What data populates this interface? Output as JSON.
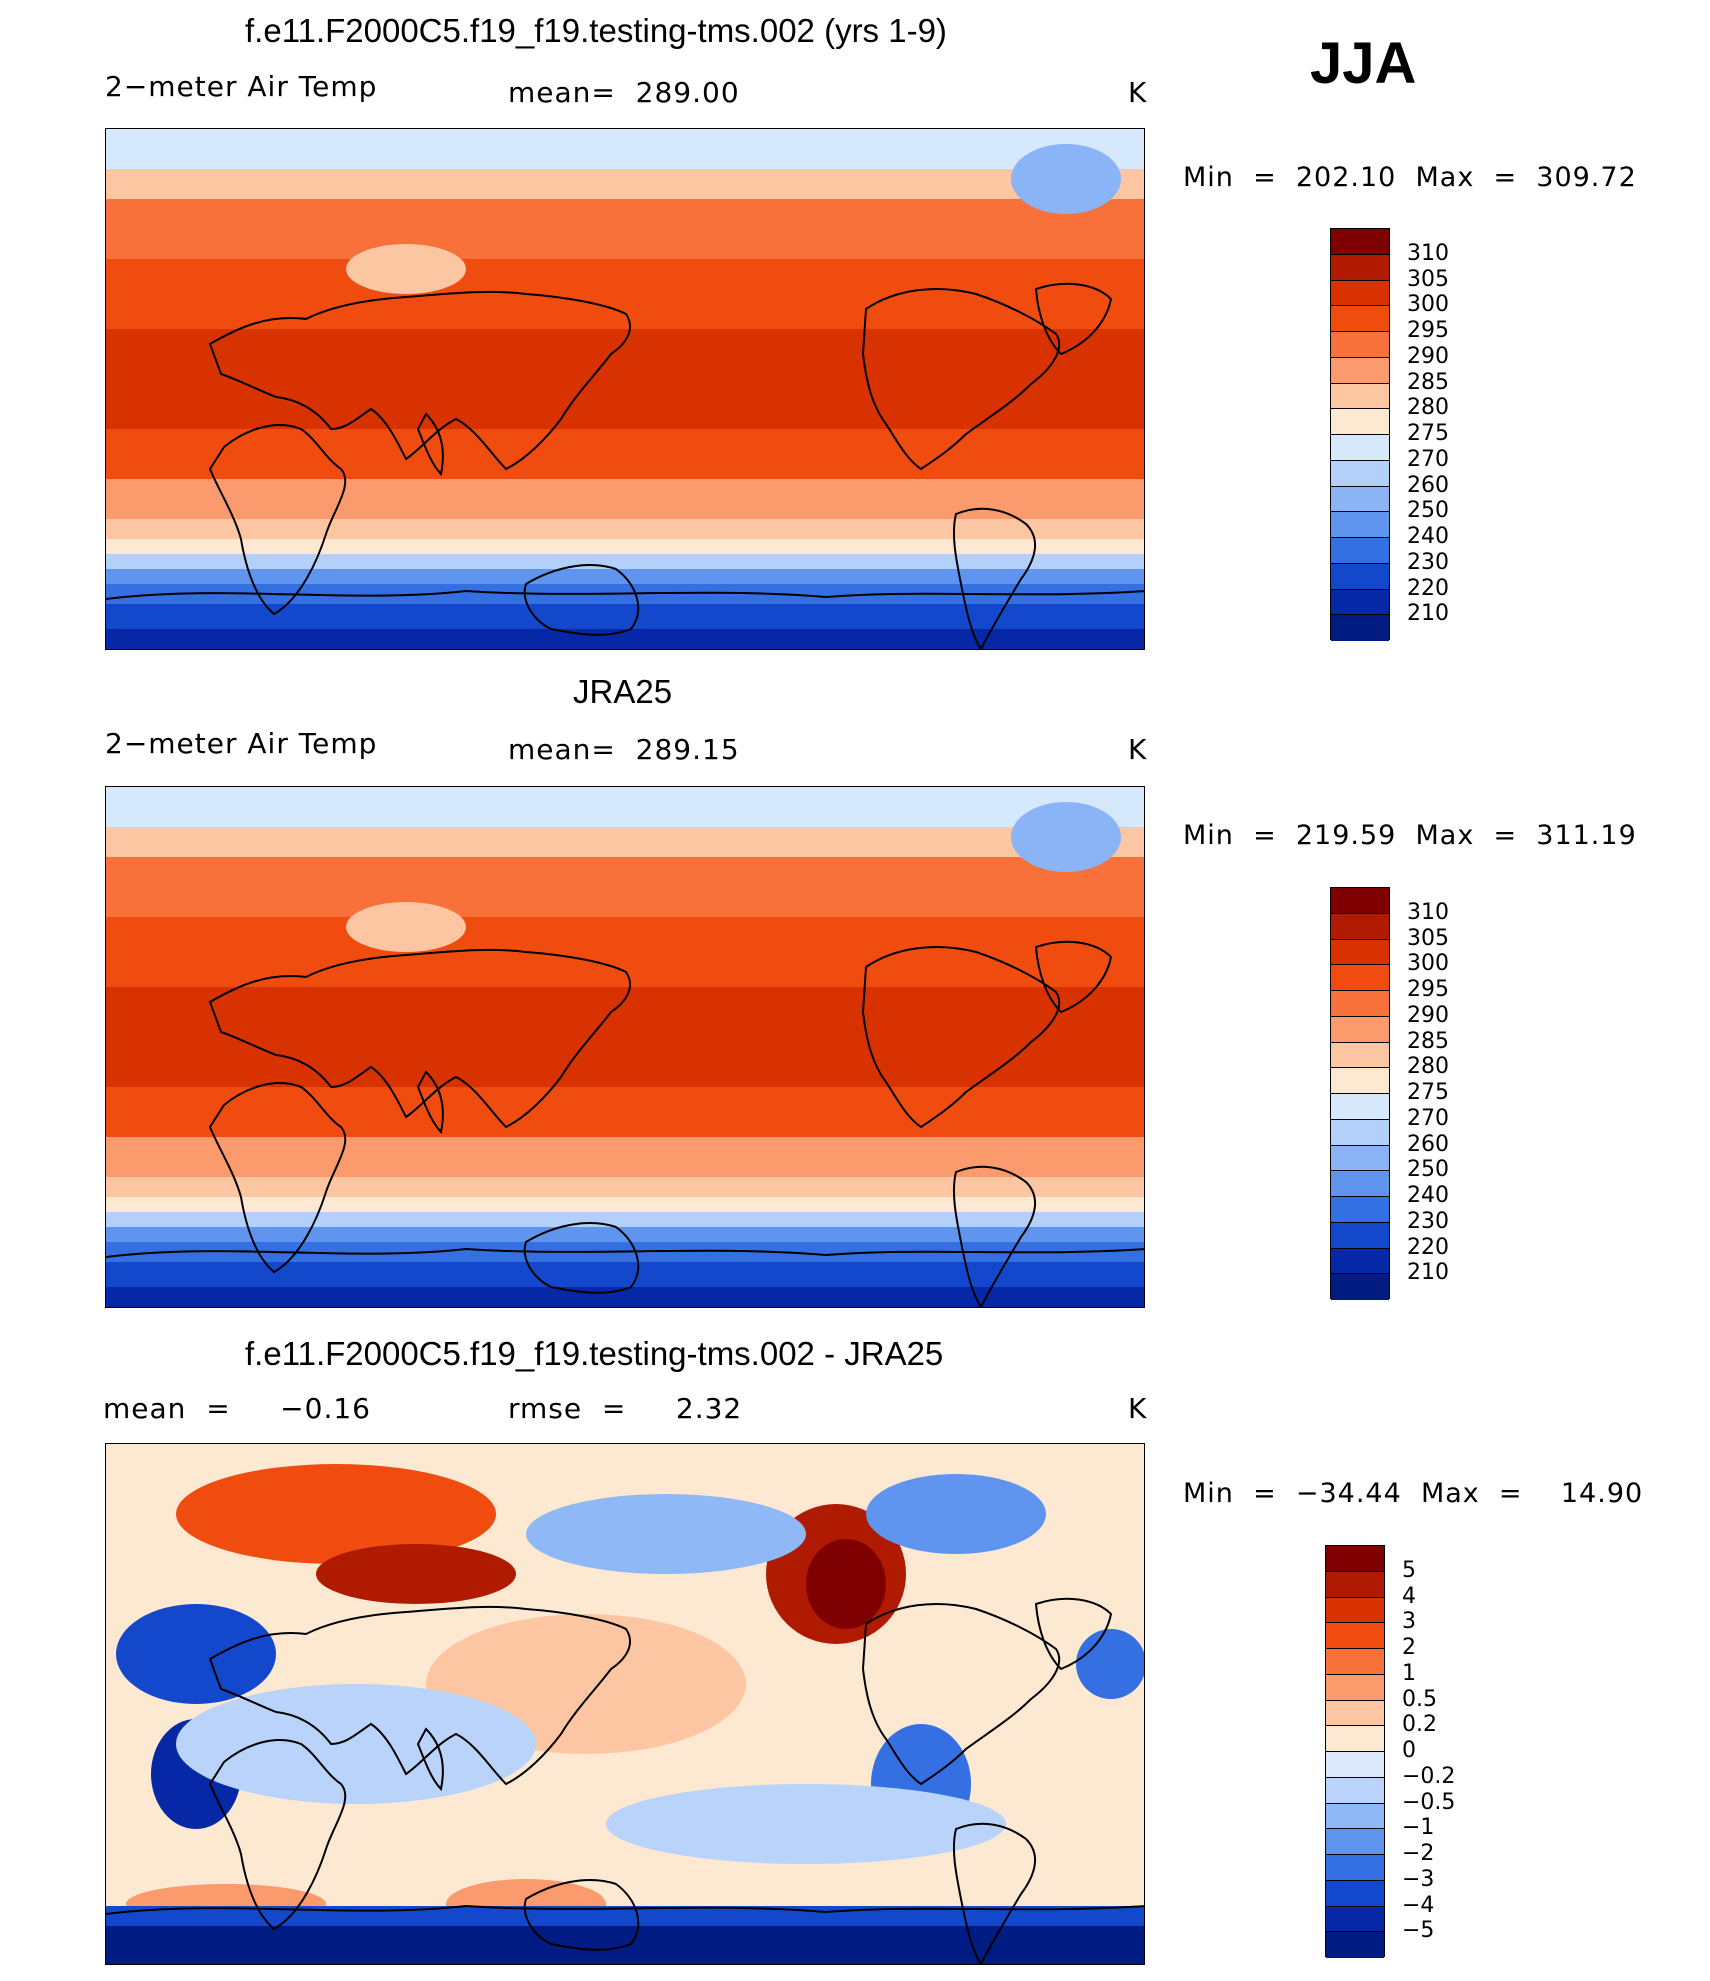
{
  "season_label": "JJA",
  "panels": [
    {
      "id": "model",
      "title": "f.e11.F2000C5.f19_f19.testing-tms.002 (yrs 1-9)",
      "left_label": "2−meter Air Temp",
      "center_label": "mean=  289.00",
      "units": "K",
      "minmax": "Min  =  202.10  Max  =  309.72",
      "kind": "abs",
      "colorbar_ticks": [
        "310",
        "305",
        "300",
        "295",
        "290",
        "285",
        "280",
        "275",
        "270",
        "260",
        "250",
        "240",
        "230",
        "220",
        "210"
      ]
    },
    {
      "id": "obs",
      "title": "JRA25",
      "left_label": "2−meter Air Temp",
      "center_label": "mean=  289.15",
      "units": "K",
      "minmax": "Min  =  219.59  Max  =  311.19",
      "kind": "abs",
      "colorbar_ticks": [
        "310",
        "305",
        "300",
        "295",
        "290",
        "285",
        "280",
        "275",
        "270",
        "260",
        "250",
        "240",
        "230",
        "220",
        "210"
      ]
    },
    {
      "id": "diff",
      "title": "f.e11.F2000C5.f19_f19.testing-tms.002 - JRA25",
      "left_label": "mean  =     −0.16",
      "center_label": "rmse  =     2.32",
      "units": "K",
      "minmax": "Min  =  −34.44  Max  =    14.90",
      "kind": "diff",
      "colorbar_ticks": [
        "5",
        "4",
        "3",
        "2",
        "1",
        "0.5",
        "0.2",
        "0",
        "−0.2",
        "−0.5",
        "−1",
        "−2",
        "−3",
        "−4",
        "−5"
      ]
    }
  ],
  "colors": {
    "abs_scale": [
      "#7f0000",
      "#b01a00",
      "#d83200",
      "#f04c10",
      "#f8703a",
      "#fb9a6c",
      "#fcc6a2",
      "#fde9d2",
      "#d6e8fb",
      "#b3d0fa",
      "#8ab4f6",
      "#5f95ee",
      "#3570e2",
      "#1448cc",
      "#0628a6",
      "#001b82"
    ],
    "diff_scale": [
      "#7f0000",
      "#b01a00",
      "#d83200",
      "#f04c10",
      "#f8703a",
      "#fb9a6c",
      "#fcc6a2",
      "#fde9d2",
      "#dbe9fb",
      "#b9d3fa",
      "#8fb8f6",
      "#5f95ee",
      "#3570e2",
      "#1448cc",
      "#0628a6",
      "#001b82"
    ],
    "coastline": "#000000"
  }
}
